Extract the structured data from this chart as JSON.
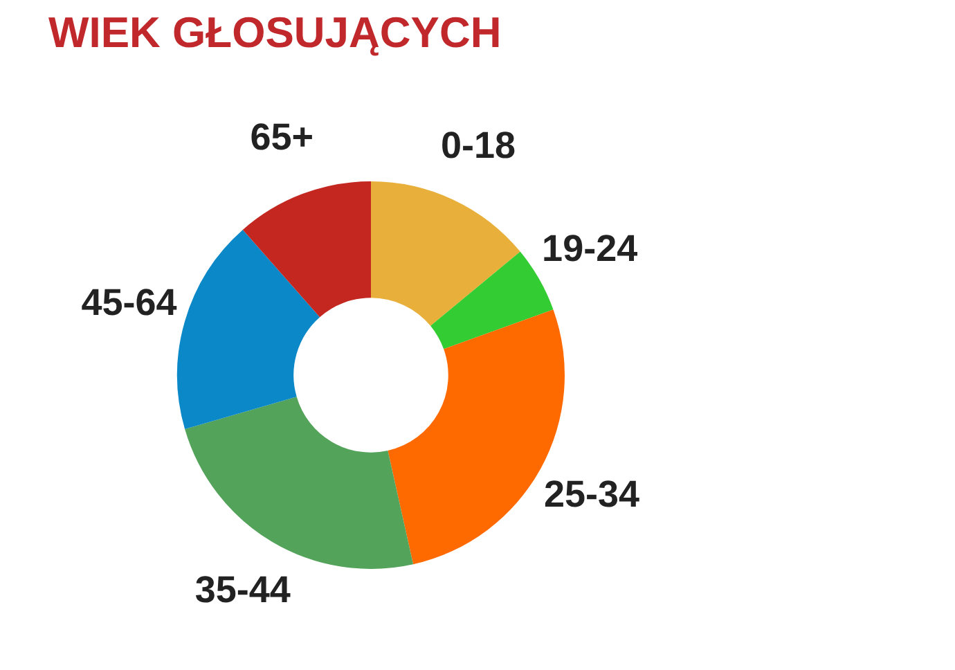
{
  "chart_data": {
    "type": "donut",
    "title": "WIEK GŁOSUJĄCYCH",
    "categories": [
      "0-18",
      "19-24",
      "25-34",
      "35-44",
      "45-64",
      "65+"
    ],
    "values": [
      14,
      5.5,
      27,
      24,
      18,
      11.5
    ],
    "colors": [
      "#e8b03a",
      "#33cc33",
      "#ff6a00",
      "#53a35a",
      "#0a88c8",
      "#c4271f"
    ],
    "legend": false
  }
}
